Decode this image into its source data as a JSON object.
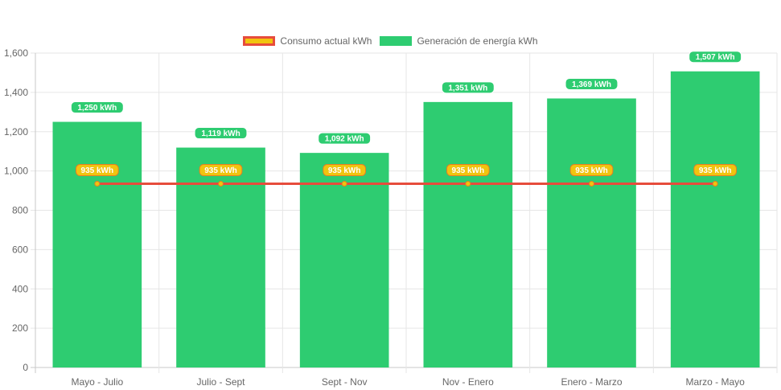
{
  "chart_data": {
    "type": "bar",
    "categories": [
      "Mayo - Julio",
      "Julio - Sept",
      "Sept - Nov",
      "Nov - Enero",
      "Enero - Marzo",
      "Marzo - Mayo"
    ],
    "series": [
      {
        "name": "Consumo actual kWh",
        "type": "line",
        "values": [
          935,
          935,
          935,
          935,
          935,
          935
        ],
        "labels": [
          "935 kWh",
          "935 kWh",
          "935 kWh",
          "935 kWh",
          "935 kWh",
          "935 kWh"
        ],
        "color": "#e74c3c",
        "fill": "#f1c40f"
      },
      {
        "name": "Generación de energía kWh",
        "type": "bar",
        "values": [
          1250,
          1119,
          1092,
          1351,
          1369,
          1507
        ],
        "labels": [
          "1,250 kWh",
          "1,119 kWh",
          "1,092 kWh",
          "1,351 kWh",
          "1,369 kWh",
          "1,507 kWh"
        ],
        "color": "#2ecc71"
      }
    ],
    "y_ticks": [
      "0",
      "200",
      "400",
      "600",
      "800",
      "1,000",
      "1,200",
      "1,400",
      "1,600"
    ],
    "ylim": [
      0,
      1600
    ],
    "grid": true,
    "legend_position": "top-center",
    "title": "",
    "xlabel": "",
    "ylabel": ""
  }
}
